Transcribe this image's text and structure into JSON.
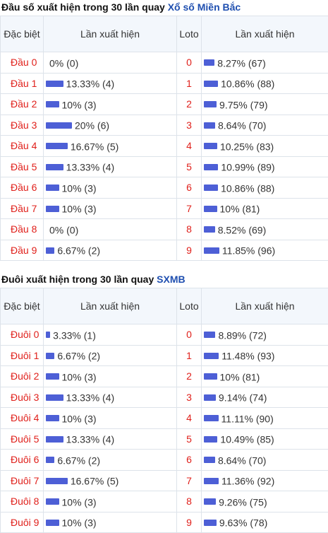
{
  "sections": [
    {
      "title": "Đầu số xuất hiện trong 30 lần quay",
      "title_link": "Xổ số Miền Bắc",
      "headers": [
        "Đặc biệt",
        "Lần xuất hiện",
        "Loto",
        "Lần xuất hiện"
      ],
      "rows": [
        {
          "label": "Đầu 0",
          "a": {
            "pct": 0,
            "label": "0% (0)"
          },
          "loto": "0",
          "b": {
            "pct": 8.27,
            "label": "8.27% (67)"
          }
        },
        {
          "label": "Đầu 1",
          "a": {
            "pct": 13.33,
            "label": "13.33% (4)"
          },
          "loto": "1",
          "b": {
            "pct": 10.86,
            "label": "10.86% (88)"
          }
        },
        {
          "label": "Đầu 2",
          "a": {
            "pct": 10,
            "label": "10% (3)"
          },
          "loto": "2",
          "b": {
            "pct": 9.75,
            "label": "9.75% (79)"
          }
        },
        {
          "label": "Đầu 3",
          "a": {
            "pct": 20,
            "label": "20% (6)"
          },
          "loto": "3",
          "b": {
            "pct": 8.64,
            "label": "8.64% (70)"
          }
        },
        {
          "label": "Đầu 4",
          "a": {
            "pct": 16.67,
            "label": "16.67% (5)"
          },
          "loto": "4",
          "b": {
            "pct": 10.25,
            "label": "10.25% (83)"
          }
        },
        {
          "label": "Đầu 5",
          "a": {
            "pct": 13.33,
            "label": "13.33% (4)"
          },
          "loto": "5",
          "b": {
            "pct": 10.99,
            "label": "10.99% (89)"
          }
        },
        {
          "label": "Đầu 6",
          "a": {
            "pct": 10,
            "label": "10% (3)"
          },
          "loto": "6",
          "b": {
            "pct": 10.86,
            "label": "10.86% (88)"
          }
        },
        {
          "label": "Đầu 7",
          "a": {
            "pct": 10,
            "label": "10% (3)"
          },
          "loto": "7",
          "b": {
            "pct": 10,
            "label": "10% (81)"
          }
        },
        {
          "label": "Đầu 8",
          "a": {
            "pct": 0,
            "label": "0% (0)"
          },
          "loto": "8",
          "b": {
            "pct": 8.52,
            "label": "8.52% (69)"
          }
        },
        {
          "label": "Đầu 9",
          "a": {
            "pct": 6.67,
            "label": "6.67% (2)"
          },
          "loto": "9",
          "b": {
            "pct": 11.85,
            "label": "11.85% (96)"
          }
        }
      ]
    },
    {
      "title": "Đuôi xuất hiện trong 30 lần quay",
      "title_link": "SXMB",
      "headers": [
        "Đặc biệt",
        "Lần xuất hiện",
        "Loto",
        "Lần xuất hiện"
      ],
      "rows": [
        {
          "label": "Đuôi 0",
          "a": {
            "pct": 3.33,
            "label": "3.33% (1)"
          },
          "loto": "0",
          "b": {
            "pct": 8.89,
            "label": "8.89% (72)"
          }
        },
        {
          "label": "Đuôi 1",
          "a": {
            "pct": 6.67,
            "label": "6.67% (2)"
          },
          "loto": "1",
          "b": {
            "pct": 11.48,
            "label": "11.48% (93)"
          }
        },
        {
          "label": "Đuôi 2",
          "a": {
            "pct": 10,
            "label": "10% (3)"
          },
          "loto": "2",
          "b": {
            "pct": 10,
            "label": "10% (81)"
          }
        },
        {
          "label": "Đuôi 3",
          "a": {
            "pct": 13.33,
            "label": "13.33% (4)"
          },
          "loto": "3",
          "b": {
            "pct": 9.14,
            "label": "9.14% (74)"
          }
        },
        {
          "label": "Đuôi 4",
          "a": {
            "pct": 10,
            "label": "10% (3)"
          },
          "loto": "4",
          "b": {
            "pct": 11.11,
            "label": "11.11% (90)"
          }
        },
        {
          "label": "Đuôi 5",
          "a": {
            "pct": 13.33,
            "label": "13.33% (4)"
          },
          "loto": "5",
          "b": {
            "pct": 10.49,
            "label": "10.49% (85)"
          }
        },
        {
          "label": "Đuôi 6",
          "a": {
            "pct": 6.67,
            "label": "6.67% (2)"
          },
          "loto": "6",
          "b": {
            "pct": 8.64,
            "label": "8.64% (70)"
          }
        },
        {
          "label": "Đuôi 7",
          "a": {
            "pct": 16.67,
            "label": "16.67% (5)"
          },
          "loto": "7",
          "b": {
            "pct": 11.36,
            "label": "11.36% (92)"
          }
        },
        {
          "label": "Đuôi 8",
          "a": {
            "pct": 10,
            "label": "10% (3)"
          },
          "loto": "8",
          "b": {
            "pct": 9.26,
            "label": "9.26% (75)"
          }
        },
        {
          "label": "Đuôi 9",
          "a": {
            "pct": 10,
            "label": "10% (3)"
          },
          "loto": "9",
          "b": {
            "pct": 9.63,
            "label": "9.63% (78)"
          }
        }
      ]
    }
  ]
}
